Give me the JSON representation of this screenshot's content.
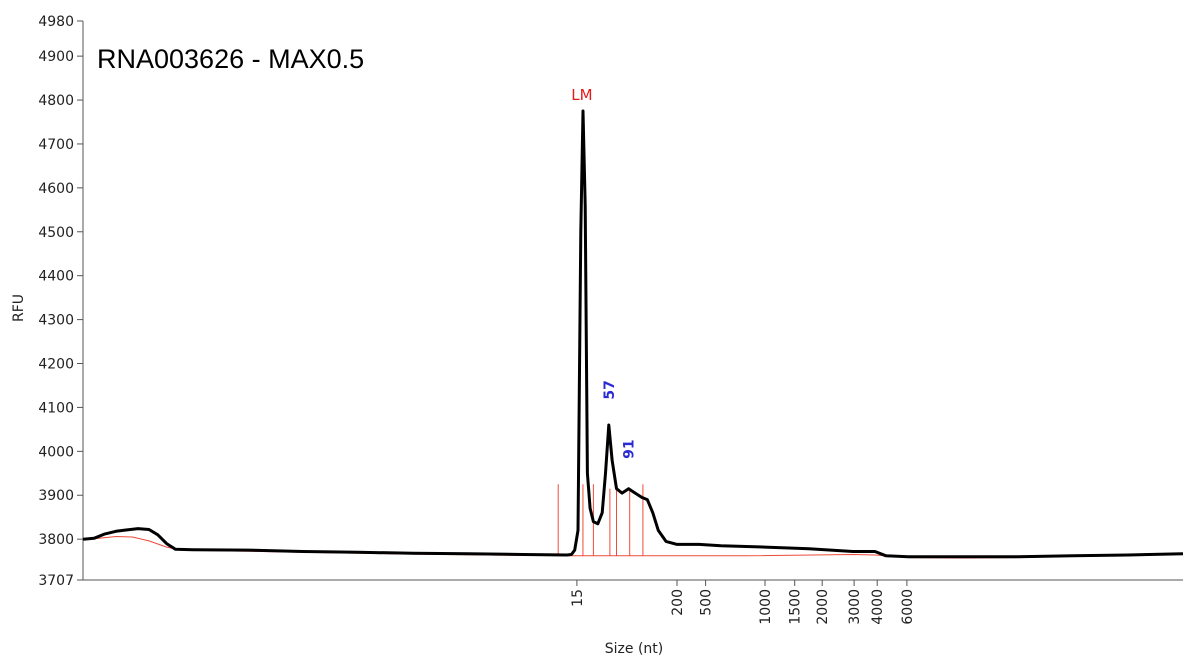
{
  "chart_data": {
    "type": "line",
    "title": "RNA003626 - MAX0.5",
    "xlabel": "Size (nt)",
    "ylabel": "RFU",
    "ylim": [
      3707,
      4980
    ],
    "y_ticks": [
      3707,
      3800,
      3900,
      4000,
      4100,
      4200,
      4300,
      4400,
      4500,
      4600,
      4700,
      4800,
      4900,
      4980
    ],
    "x_ticks": [
      {
        "label": "15",
        "t": 0.449
      },
      {
        "label": "200",
        "t": 0.54
      },
      {
        "label": "500",
        "t": 0.566
      },
      {
        "label": "1000",
        "t": 0.62
      },
      {
        "label": "1500",
        "t": 0.647
      },
      {
        "label": "2000",
        "t": 0.672
      },
      {
        "label": "3000",
        "t": 0.701
      },
      {
        "label": "4000",
        "t": 0.722
      },
      {
        "label": "6000",
        "t": 0.749
      }
    ],
    "series": [
      {
        "points": [
          [
            0.0,
            3800
          ],
          [
            0.01,
            3802
          ],
          [
            0.02,
            3812
          ],
          [
            0.03,
            3818
          ],
          [
            0.04,
            3821
          ],
          [
            0.05,
            3824
          ],
          [
            0.06,
            3822
          ],
          [
            0.068,
            3810
          ],
          [
            0.076,
            3790
          ],
          [
            0.084,
            3777
          ],
          [
            0.1,
            3776
          ],
          [
            0.15,
            3775
          ],
          [
            0.2,
            3772
          ],
          [
            0.25,
            3770
          ],
          [
            0.3,
            3768
          ],
          [
            0.35,
            3767
          ],
          [
            0.4,
            3765
          ],
          [
            0.44,
            3764
          ],
          [
            0.444,
            3765
          ],
          [
            0.447,
            3775
          ],
          [
            0.45,
            3820
          ],
          [
            0.4525,
            4500
          ],
          [
            0.4545,
            4775
          ],
          [
            0.4565,
            4560
          ],
          [
            0.4585,
            3950
          ],
          [
            0.461,
            3870
          ],
          [
            0.464,
            3840
          ],
          [
            0.468,
            3835
          ],
          [
            0.472,
            3860
          ],
          [
            0.475,
            3950
          ],
          [
            0.478,
            4060
          ],
          [
            0.481,
            3980
          ],
          [
            0.485,
            3915
          ],
          [
            0.49,
            3905
          ],
          [
            0.496,
            3915
          ],
          [
            0.502,
            3905
          ],
          [
            0.508,
            3895
          ],
          [
            0.513,
            3890
          ],
          [
            0.518,
            3860
          ],
          [
            0.523,
            3820
          ],
          [
            0.53,
            3795
          ],
          [
            0.54,
            3788
          ],
          [
            0.56,
            3788
          ],
          [
            0.58,
            3785
          ],
          [
            0.62,
            3782
          ],
          [
            0.66,
            3778
          ],
          [
            0.7,
            3772
          ],
          [
            0.72,
            3772
          ],
          [
            0.73,
            3762
          ],
          [
            0.75,
            3760
          ],
          [
            0.8,
            3760
          ],
          [
            0.85,
            3760
          ],
          [
            0.9,
            3762
          ],
          [
            0.95,
            3764
          ],
          [
            1.0,
            3767
          ]
        ]
      },
      {
        "points": [
          [
            0.0,
            3800
          ],
          [
            0.01,
            3801
          ],
          [
            0.03,
            3806
          ],
          [
            0.045,
            3805
          ],
          [
            0.06,
            3796
          ],
          [
            0.076,
            3782
          ],
          [
            0.09,
            3775
          ],
          [
            0.2,
            3770
          ],
          [
            0.3,
            3766
          ],
          [
            0.4,
            3763
          ],
          [
            0.45,
            3762
          ],
          [
            0.5,
            3762
          ],
          [
            0.6,
            3762
          ],
          [
            0.7,
            3765
          ],
          [
            0.72,
            3764
          ],
          [
            0.75,
            3758
          ],
          [
            0.8,
            3757
          ],
          [
            0.85,
            3758
          ],
          [
            0.9,
            3761
          ],
          [
            0.95,
            3763
          ],
          [
            1.0,
            3766
          ]
        ]
      }
    ],
    "markers": [
      {
        "t": 0.432,
        "top": 3925,
        "label": ""
      },
      {
        "t": 0.4545,
        "top": 3925,
        "label": "LM"
      },
      {
        "t": 0.464,
        "top": 3925,
        "label": ""
      },
      {
        "t": 0.479,
        "top": 3915,
        "label": "57"
      },
      {
        "t": 0.485,
        "top": 3915,
        "label": ""
      },
      {
        "t": 0.497,
        "top": 3915,
        "label": "91"
      },
      {
        "t": 0.509,
        "top": 3925,
        "label": ""
      }
    ]
  }
}
